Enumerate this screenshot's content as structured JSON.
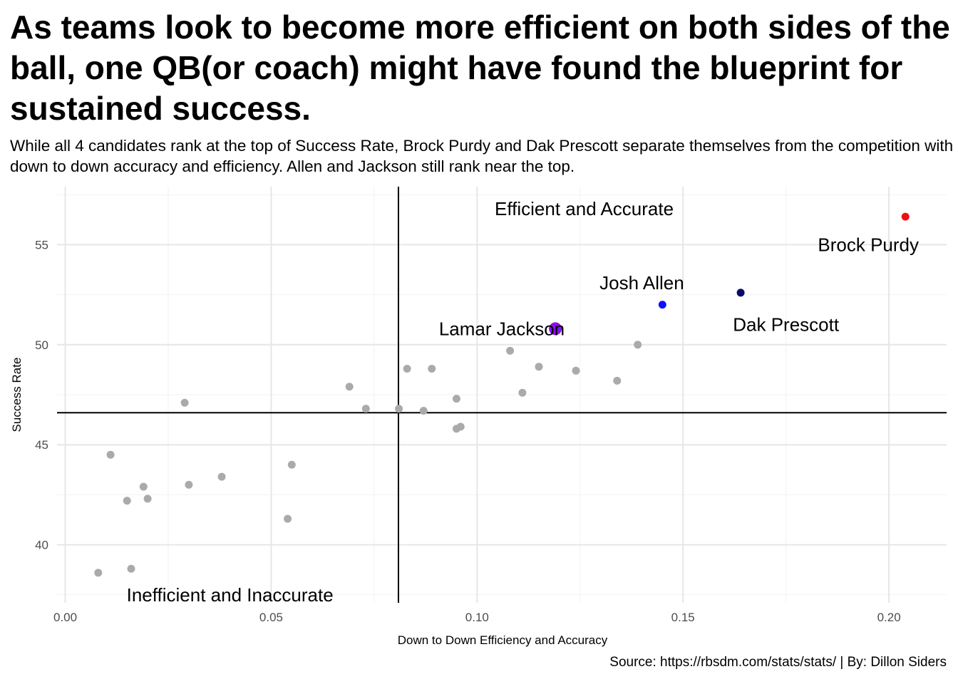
{
  "chart_data": {
    "type": "scatter",
    "title": "As teams look to become more efficient on both sides of the ball, one QB(or coach) might have found the blueprint for sustained success.",
    "subtitle": "While all 4 candidates rank at the top of Success Rate, Brock Purdy and Dak Prescott separate themselves from the competition with down to down accuracy and efficiency. Allen and Jackson still rank near the top.",
    "caption": "Source: https://rbsdm.com/stats/stats/ | By: Dillon Siders",
    "xlabel": "Down to Down Efficiency and Accuracy",
    "ylabel": "Success Rate",
    "xlim": [
      -0.002,
      0.214
    ],
    "ylim": [
      37.1,
      57.9
    ],
    "x_ticks": [
      0.0,
      0.05,
      0.1,
      0.15,
      0.2
    ],
    "x_tick_labels": [
      "0.00",
      "0.05",
      "0.10",
      "0.15",
      "0.20"
    ],
    "y_ticks": [
      40,
      45,
      50,
      55
    ],
    "y_tick_labels": [
      "40",
      "45",
      "50",
      "55"
    ],
    "grid": true,
    "reference_lines": {
      "x": 0.0809,
      "y": 46.6
    },
    "region_labels": [
      {
        "text": "Efficient and Accurate",
        "x": 0.126,
        "y": 56.8
      },
      {
        "text": "Inefficient and Inaccurate",
        "x": 0.04,
        "y": 37.5
      }
    ],
    "highlighted": [
      {
        "name": "Brock Purdy",
        "x": 0.204,
        "y": 56.4,
        "color": "#ee1111",
        "r": 5.5,
        "label_x": 0.195,
        "label_y": 55.0
      },
      {
        "name": "Dak Prescott",
        "x": 0.164,
        "y": 52.6,
        "color": "#0a0a6e",
        "r": 5.5,
        "label_x": 0.175,
        "label_y": 51.0
      },
      {
        "name": "Josh Allen",
        "x": 0.145,
        "y": 52.0,
        "color": "#1010ff",
        "r": 5.5,
        "label_x": 0.14,
        "label_y": 53.1
      },
      {
        "name": "Lamar Jackson",
        "x": 0.119,
        "y": 50.8,
        "color": "#8a0ff0",
        "r": 9,
        "label_x": 0.106,
        "label_y": 50.8
      }
    ],
    "others_color": "#aaaaaa",
    "others": [
      {
        "x": 0.008,
        "y": 38.6
      },
      {
        "x": 0.016,
        "y": 38.8
      },
      {
        "x": 0.011,
        "y": 44.5
      },
      {
        "x": 0.015,
        "y": 42.2
      },
      {
        "x": 0.019,
        "y": 42.9
      },
      {
        "x": 0.02,
        "y": 42.3
      },
      {
        "x": 0.029,
        "y": 47.1
      },
      {
        "x": 0.03,
        "y": 43.0
      },
      {
        "x": 0.038,
        "y": 43.4
      },
      {
        "x": 0.054,
        "y": 41.3
      },
      {
        "x": 0.055,
        "y": 44.0
      },
      {
        "x": 0.069,
        "y": 47.9
      },
      {
        "x": 0.073,
        "y": 46.8
      },
      {
        "x": 0.081,
        "y": 46.8
      },
      {
        "x": 0.083,
        "y": 48.8
      },
      {
        "x": 0.087,
        "y": 46.7
      },
      {
        "x": 0.089,
        "y": 48.8
      },
      {
        "x": 0.095,
        "y": 47.3
      },
      {
        "x": 0.095,
        "y": 45.8
      },
      {
        "x": 0.096,
        "y": 45.9
      },
      {
        "x": 0.108,
        "y": 49.7
      },
      {
        "x": 0.111,
        "y": 47.6
      },
      {
        "x": 0.115,
        "y": 48.9
      },
      {
        "x": 0.124,
        "y": 48.7
      },
      {
        "x": 0.134,
        "y": 48.2
      },
      {
        "x": 0.139,
        "y": 50.0
      }
    ]
  }
}
